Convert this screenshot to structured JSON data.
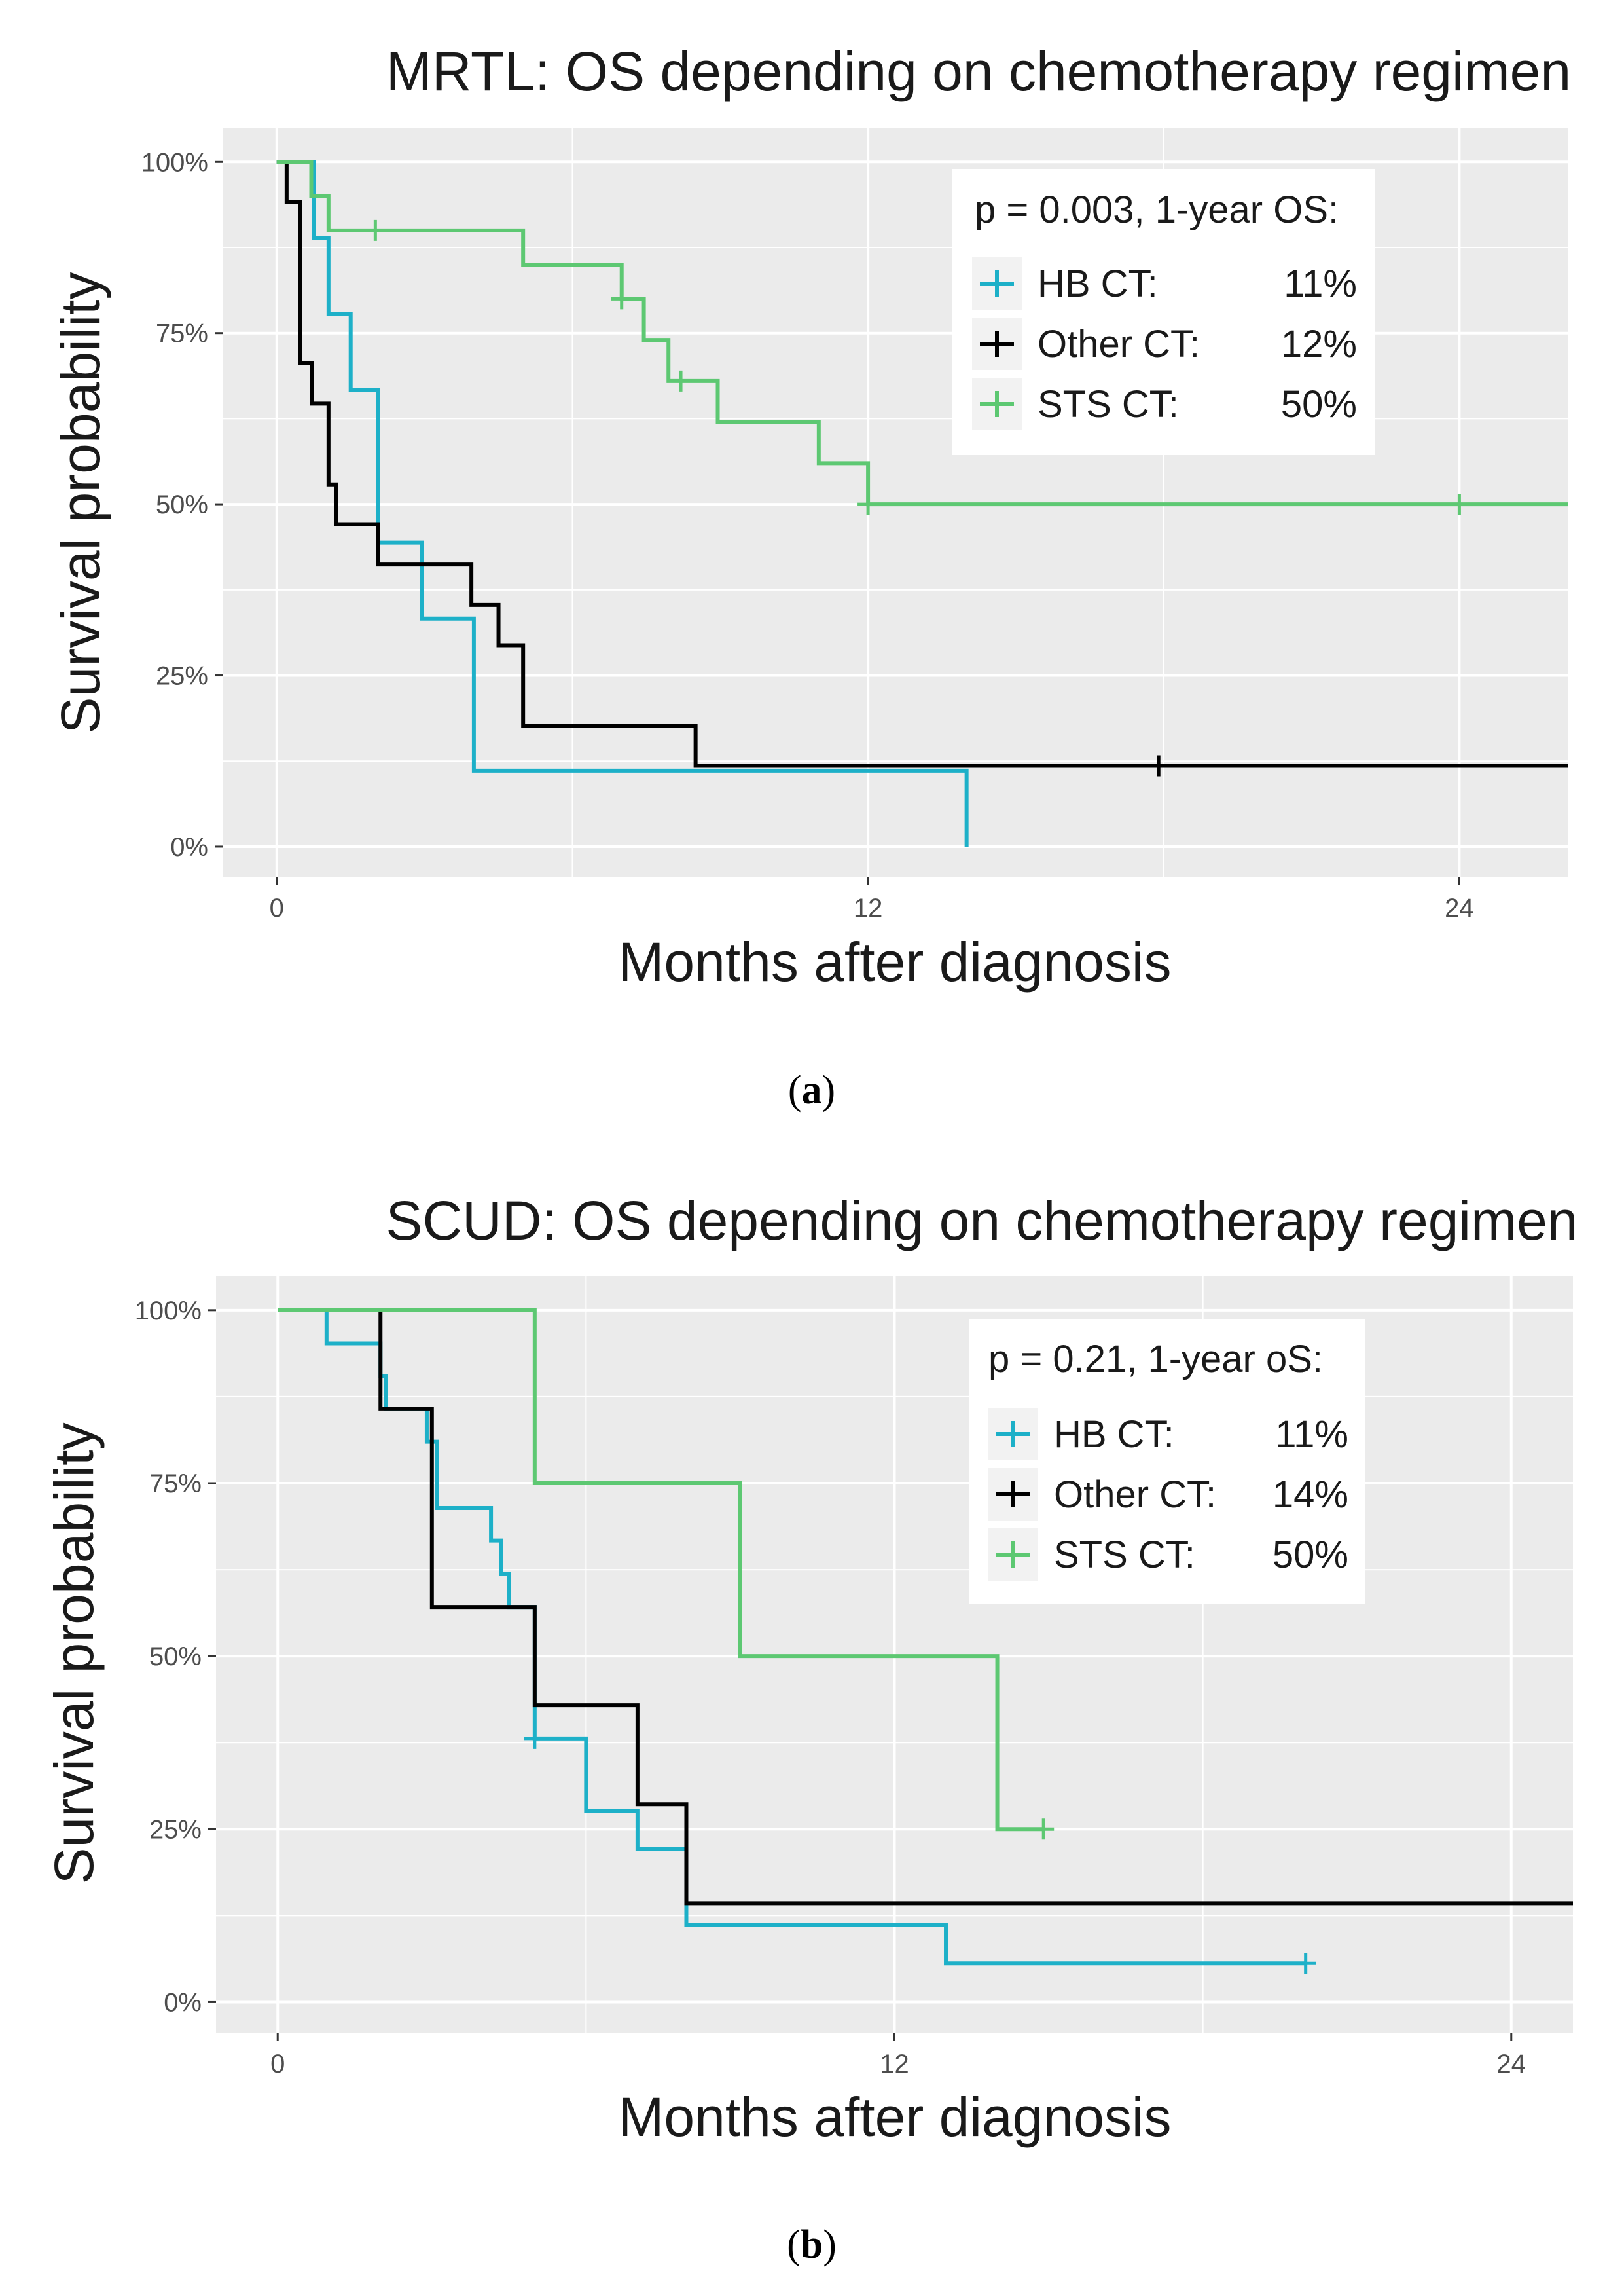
{
  "chart_data": [
    {
      "type": "line",
      "subtype": "kaplan-meier step",
      "title": "MRTL: OS depending on chemotherapy regimen",
      "xlabel": "Months after diagnosis",
      "ylabel": "Survival probability",
      "xlim": [
        -1.1,
        26.2
      ],
      "ylim": [
        -0.045,
        1.05
      ],
      "x_ticks": [
        0,
        12,
        24
      ],
      "x_tick_labels": [
        "0",
        "12",
        "24"
      ],
      "y_ticks": [
        0,
        0.25,
        0.5,
        0.75,
        1.0
      ],
      "y_tick_labels": [
        "0%",
        "25%",
        "50%",
        "75%",
        "100%"
      ],
      "legend_position": "top-right",
      "legend_title": "p = 0.003, 1-year OS:",
      "caption": {
        "open": "(",
        "label": "a",
        "close": ")"
      },
      "series": [
        {
          "name": "HB CT",
          "legend_label": "HB CT:",
          "legend_value": "11%",
          "color": "#1DB0C8",
          "steps": [
            [
              0,
              1.0
            ],
            [
              0.75,
              0.889
            ],
            [
              1.05,
              0.778
            ],
            [
              1.5,
              0.667
            ],
            [
              2.05,
              0.444
            ],
            [
              2.95,
              0.333
            ],
            [
              4.0,
              0.111
            ],
            [
              14.0,
              0.0
            ]
          ],
          "end_x": 14.0,
          "censors": []
        },
        {
          "name": "Other CT",
          "legend_label": "Other CT:",
          "legend_value": "12%",
          "color": "#000000",
          "steps": [
            [
              0,
              1.0
            ],
            [
              0.2,
              0.941
            ],
            [
              0.48,
              0.706
            ],
            [
              0.72,
              0.647
            ],
            [
              1.05,
              0.529
            ],
            [
              1.2,
              0.471
            ],
            [
              2.05,
              0.412
            ],
            [
              3.95,
              0.353
            ],
            [
              4.5,
              0.294
            ],
            [
              5.0,
              0.176
            ],
            [
              8.5,
              0.118
            ]
          ],
          "end_x": 26.2,
          "censors": [
            17.9
          ]
        },
        {
          "name": "STS CT",
          "legend_label": "STS CT:",
          "legend_value": "50%",
          "color": "#5DC872",
          "steps": [
            [
              0,
              1.0
            ],
            [
              0.7,
              0.95
            ],
            [
              1.05,
              0.9
            ],
            [
              5.0,
              0.85
            ],
            [
              7.0,
              0.8
            ],
            [
              7.45,
              0.74
            ],
            [
              7.95,
              0.68
            ],
            [
              8.95,
              0.62
            ],
            [
              11.0,
              0.56
            ],
            [
              12.0,
              0.5
            ]
          ],
          "end_x": 26.2,
          "censors": [
            2.0,
            7.0,
            8.2,
            12.0,
            24.0
          ]
        }
      ]
    },
    {
      "type": "line",
      "subtype": "kaplan-meier step",
      "title": "SCUD: OS depending on chemotherapy regimen",
      "xlabel": "Months after diagnosis",
      "ylabel": "Survival probability",
      "xlim": [
        -1.2,
        25.2
      ],
      "ylim": [
        -0.045,
        1.05
      ],
      "x_ticks": [
        0,
        12,
        24
      ],
      "x_tick_labels": [
        "0",
        "12",
        "24"
      ],
      "y_ticks": [
        0,
        0.25,
        0.5,
        0.75,
        1.0
      ],
      "y_tick_labels": [
        "0%",
        "25%",
        "50%",
        "75%",
        "100%"
      ],
      "legend_position": "top-right",
      "legend_title": "p = 0.21, 1-year oS:",
      "caption": {
        "open": "(",
        "label": "b",
        "close": ")"
      },
      "series": [
        {
          "name": "HB CT",
          "legend_label": "HB CT:",
          "legend_value": "11%",
          "color": "#1DB0C8",
          "steps": [
            [
              0,
              1.0
            ],
            [
              0.95,
              0.952
            ],
            [
              2.0,
              0.905
            ],
            [
              2.1,
              0.857
            ],
            [
              2.9,
              0.81
            ],
            [
              3.1,
              0.714
            ],
            [
              4.15,
              0.667
            ],
            [
              4.35,
              0.619
            ],
            [
              4.5,
              0.571
            ],
            [
              5.0,
              0.381
            ],
            [
              6.0,
              0.276
            ],
            [
              7.0,
              0.221
            ],
            [
              7.95,
              0.112
            ],
            [
              13.0,
              0.056
            ]
          ],
          "end_x": 20.0,
          "censors": [
            5.0,
            20.0
          ]
        },
        {
          "name": "Other CT",
          "legend_label": "Other CT:",
          "legend_value": "14%",
          "color": "#000000",
          "steps": [
            [
              0,
              1.0
            ],
            [
              2.0,
              0.857
            ],
            [
              3.0,
              0.571
            ],
            [
              5.0,
              0.429
            ],
            [
              7.0,
              0.286
            ],
            [
              7.95,
              0.143
            ]
          ],
          "end_x": 25.2,
          "censors": []
        },
        {
          "name": "STS CT",
          "legend_label": "STS CT:",
          "legend_value": "50%",
          "color": "#5DC872",
          "steps": [
            [
              0,
              1.0
            ],
            [
              5.0,
              0.75
            ],
            [
              9.0,
              0.5
            ],
            [
              14.0,
              0.25
            ]
          ],
          "end_x": 14.9,
          "censors": [
            14.9
          ]
        }
      ]
    }
  ]
}
